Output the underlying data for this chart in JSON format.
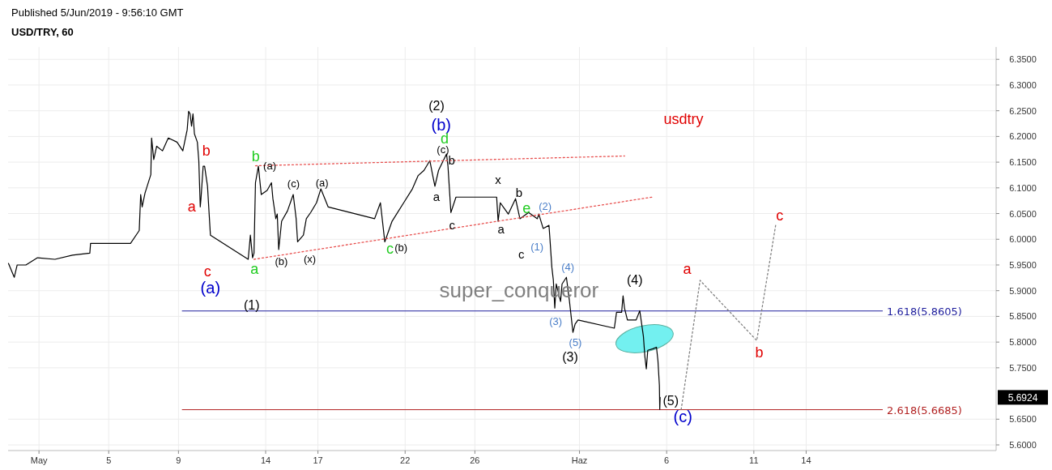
{
  "chart_data": {
    "type": "line",
    "title": "USD/TRY, 60",
    "subtitle": "Published 5/Jun/2019 - 9:56:10 GMT",
    "xlim": [
      "2019-04-29T05:30",
      "2019-06-24T21:30"
    ],
    "ylim": [
      5.589,
      6.374
    ],
    "xticks": [
      {
        "value": "2019-05-01",
        "label": "May"
      },
      {
        "value": "2019-05-05",
        "label": "5"
      },
      {
        "value": "2019-05-09",
        "label": "9"
      },
      {
        "value": "2019-05-14",
        "label": "14"
      },
      {
        "value": "2019-05-17",
        "label": "17"
      },
      {
        "value": "2019-05-22",
        "label": "22"
      },
      {
        "value": "2019-05-26",
        "label": "26"
      },
      {
        "value": "2019-06-01",
        "label": "Haz"
      },
      {
        "value": "2019-06-06",
        "label": "6"
      },
      {
        "value": "2019-06-11",
        "label": "11"
      },
      {
        "value": "2019-06-14",
        "label": "14"
      }
    ],
    "yticks": [
      {
        "value": 5.6,
        "label": "5.6000"
      },
      {
        "value": 5.65,
        "label": "5.6500"
      },
      {
        "value": 5.75,
        "label": "5.7500"
      },
      {
        "value": 5.8,
        "label": "5.8000"
      },
      {
        "value": 5.85,
        "label": "5.8500"
      },
      {
        "value": 5.9,
        "label": "5.9000"
      },
      {
        "value": 5.95,
        "label": "5.9500"
      },
      {
        "value": 6.0,
        "label": "6.0000"
      },
      {
        "value": 6.05,
        "label": "6.0500"
      },
      {
        "value": 6.1,
        "label": "6.1000"
      },
      {
        "value": 6.15,
        "label": "6.1500"
      },
      {
        "value": 6.2,
        "label": "6.2000"
      },
      {
        "value": 6.25,
        "label": "6.2500"
      },
      {
        "value": 6.3,
        "label": "6.3000"
      },
      {
        "value": 6.35,
        "label": "6.3500"
      }
    ],
    "grid": true,
    "marker": "none",
    "series": [
      {
        "color": "#000000",
        "line_style": "solid",
        "x": [
          "2019-04-29T06:00",
          "2019-04-29T14:00",
          "2019-04-29T18:00",
          "2019-04-30T06:00",
          "2019-04-30T22:00",
          "2019-05-01T22:00",
          "2019-05-02T22:00",
          "2019-05-03T22:00",
          "2019-05-03T23:00",
          "2019-05-06T06:00",
          "2019-05-06T18:00",
          "2019-05-06T20:00",
          "2019-05-06T22:00",
          "2019-05-07T02:00",
          "2019-05-07T10:00",
          "2019-05-07T11:00",
          "2019-05-07T14:00",
          "2019-05-07T18:00",
          "2019-05-08T02:00",
          "2019-05-08T10:00",
          "2019-05-08T22:00",
          "2019-05-09T06:00",
          "2019-05-09T12:00",
          "2019-05-09T14:00",
          "2019-05-09T16:00",
          "2019-05-09T18:00",
          "2019-05-09T20:00",
          "2019-05-09T22:00",
          "2019-05-10T02:00",
          "2019-05-10T04:00",
          "2019-05-10T06:00",
          "2019-05-10T07:00",
          "2019-05-10T10:00",
          "2019-05-10T12:00",
          "2019-05-10T16:00",
          "2019-05-10T18:00",
          "2019-05-10T20:00",
          "2019-05-13T00:00",
          "2019-05-13T03:00",
          "2019-05-13T06:00",
          "2019-05-13T08:00",
          "2019-05-13T10:00",
          "2019-05-13T14:00",
          "2019-05-13T18:00",
          "2019-05-14T02:00",
          "2019-05-14T08:00",
          "2019-05-14T10:00",
          "2019-05-14T14:00",
          "2019-05-14T16:00",
          "2019-05-14T18:00",
          "2019-05-14T22:00",
          "2019-05-15T06:00",
          "2019-05-15T14:00",
          "2019-05-15T18:00",
          "2019-05-15T20:00",
          "2019-05-16T04:00",
          "2019-05-16T08:00",
          "2019-05-16T14:00",
          "2019-05-16T22:00",
          "2019-05-17T04:00",
          "2019-05-17T14:00",
          "2019-05-20T06:00",
          "2019-05-20T14:00",
          "2019-05-20T20:00",
          "2019-05-21T06:00",
          "2019-05-21T22:00",
          "2019-05-22T10:00",
          "2019-05-22T18:00",
          "2019-05-23T02:00",
          "2019-05-23T10:00",
          "2019-05-23T14:00",
          "2019-05-23T17:00",
          "2019-05-23T22:00",
          "2019-05-24T09:00",
          "2019-05-24T11:00",
          "2019-05-24T15:00",
          "2019-05-24T22:00",
          "2019-05-27T06:00",
          "2019-05-27T08:00",
          "2019-05-27T11:00",
          "2019-05-27T22:00",
          "2019-05-28T08:00",
          "2019-05-28T14:00",
          "2019-05-29T02:00",
          "2019-05-29T14:00",
          "2019-05-29T16:00",
          "2019-05-29T22:00",
          "2019-05-30T06:00",
          "2019-05-30T07:00",
          "2019-05-30T10:00",
          "2019-05-30T12:00",
          "2019-05-30T14:00",
          "2019-05-30T16:00",
          "2019-05-30T22:00",
          "2019-05-31T00:00",
          "2019-05-31T06:00",
          "2019-05-31T10:00",
          "2019-05-31T15:00",
          "2019-05-31T18:00",
          "2019-05-31T22:00",
          "2019-06-03T00:00",
          "2019-06-03T03:00",
          "2019-06-03T10:00",
          "2019-06-03T12:00",
          "2019-06-03T14:00",
          "2019-06-03T18:00",
          "2019-06-04T06:00",
          "2019-06-04T11:00",
          "2019-06-04T16:00",
          "2019-06-04T18:00",
          "2019-06-04T20:00",
          "2019-06-04T22:00",
          "2019-06-05T05:00",
          "2019-06-05T10:00",
          "2019-06-05T12:00",
          "2019-06-05T14:00",
          "2019-06-05T14:30",
          "2019-06-05T15:00"
        ],
        "values": [
          5.953,
          5.926,
          5.95,
          5.95,
          5.964,
          5.961,
          5.969,
          5.973,
          5.992,
          5.992,
          6.017,
          6.087,
          6.063,
          6.09,
          6.126,
          6.197,
          6.155,
          6.181,
          6.172,
          6.197,
          6.189,
          6.172,
          6.213,
          6.249,
          6.244,
          6.22,
          6.244,
          6.205,
          6.189,
          6.153,
          6.063,
          6.079,
          6.142,
          6.142,
          6.103,
          6.055,
          6.008,
          5.961,
          6.008,
          5.964,
          5.973,
          6.11,
          6.142,
          6.087,
          6.095,
          6.11,
          6.079,
          6.04,
          6.049,
          5.98,
          6.035,
          6.055,
          6.087,
          6.04,
          5.995,
          6.008,
          6.04,
          6.052,
          6.071,
          6.098,
          6.063,
          6.04,
          6.071,
          5.995,
          6.035,
          6.071,
          6.098,
          6.124,
          6.134,
          6.153,
          6.124,
          6.103,
          6.134,
          6.166,
          6.142,
          6.052,
          6.082,
          6.082,
          6.035,
          6.071,
          6.049,
          6.079,
          6.04,
          6.052,
          6.04,
          6.049,
          6.021,
          6.027,
          6.008,
          5.945,
          5.921,
          5.866,
          5.913,
          5.879,
          5.913,
          5.926,
          5.882,
          5.819,
          5.835,
          5.843,
          5.827,
          5.858,
          5.858,
          5.89,
          5.866,
          5.843,
          5.843,
          5.861,
          5.811,
          5.772,
          5.748,
          5.784,
          5.787,
          5.79,
          5.764,
          5.716,
          5.669,
          5.6924
        ]
      },
      {
        "color": "#e8504f",
        "line_style": "dotted",
        "x": [
          "2019-05-13T10:00",
          "2019-06-03T14:00"
        ],
        "values": [
          6.143,
          6.162
        ]
      },
      {
        "color": "#e8504f",
        "line_style": "dotted",
        "x": [
          "2019-05-13T08:00",
          "2019-06-05T04:00"
        ],
        "values": [
          5.961,
          6.082
        ]
      },
      {
        "color": "#808080",
        "line_style": "dotted",
        "x": [
          "2019-06-06T20:00",
          "2019-06-07T22:00",
          "2019-06-11T04:00",
          "2019-06-12T06:00"
        ],
        "values": [
          5.669,
          5.92,
          5.803,
          6.027
        ]
      }
    ],
    "ref_lines": [
      {
        "axis": "y",
        "value": 5.8605,
        "label": "1.618(5.8605)",
        "color": "#1c1c9c"
      },
      {
        "axis": "y",
        "value": 5.6685,
        "label": "2.618(5.6685)",
        "color": "#b22222"
      }
    ],
    "annotations": [
      "a",
      "b",
      "c",
      "(a)",
      "a",
      "b",
      "(1)",
      "(a)",
      "(b)",
      "(c)",
      "(x)",
      "(a)",
      "c",
      "(b)",
      "(2)",
      "(b)",
      "d",
      "(c)",
      "b",
      "a",
      "x",
      "c",
      "a",
      "b",
      "e",
      "(2)",
      "(1)",
      "c",
      "(4)",
      "(4)",
      "(3)",
      "(5)",
      "(3)",
      "(5)",
      "(c)",
      {
        "text": "a",
        "x": "2019-06-07T22:00",
        "y": 5.92
      },
      {
        "text": "b",
        "x": "2019-06-11T04:00",
        "y": 5.803
      },
      {
        "text": "c",
        "x": "2019-06-12T06:00",
        "y": 6.027
      },
      "usdtry",
      "super_conqueror",
      "5.6924"
    ]
  }
}
